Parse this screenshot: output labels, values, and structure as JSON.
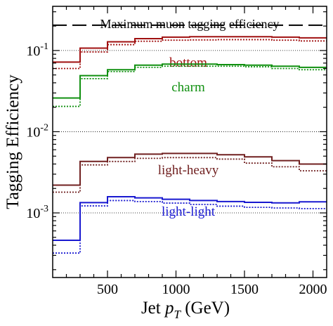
{
  "chart_data": {
    "type": "line",
    "xlabel": "Jet p_T (GeV)",
    "xlabel_parts": {
      "main": "Jet ",
      "var": "p",
      "sub": "T",
      "unit": " (GeV)"
    },
    "ylabel": "Tagging Efficiency",
    "xlim": [
      100,
      2100
    ],
    "ylim": [
      0.00016,
      0.35
    ],
    "yscale": "log",
    "x_ticks": [
      500,
      1000,
      1500,
      2000
    ],
    "x_tick_labels": [
      "500",
      "1000",
      "1500",
      "2000"
    ],
    "y_ticks": [
      0.001,
      0.01,
      0.1
    ],
    "y_tick_labels": [
      {
        "base": "10",
        "exp": "-3"
      },
      {
        "base": "10",
        "exp": "-2"
      },
      {
        "base": "10",
        "exp": "-1"
      }
    ],
    "grid_lines_y": [
      0.001,
      0.01,
      0.1
    ],
    "annotation": {
      "text": "Maximum muon tagging efficiency",
      "value": 0.205
    },
    "bin_edges": [
      100,
      300,
      500,
      700,
      900,
      1100,
      1300,
      1500,
      1700,
      1900,
      2100
    ],
    "series": [
      {
        "name": "bottom",
        "color": "#a01010",
        "solid": [
          0.072,
          0.107,
          0.128,
          0.14,
          0.146,
          0.148,
          0.148,
          0.148,
          0.146,
          0.143
        ],
        "dotted": [
          0.06,
          0.096,
          0.118,
          0.13,
          0.134,
          0.135,
          0.136,
          0.136,
          0.134,
          0.131
        ]
      },
      {
        "name": "charm",
        "color": "#109010",
        "solid": [
          0.026,
          0.049,
          0.058,
          0.066,
          0.068,
          0.068,
          0.067,
          0.066,
          0.064,
          0.062
        ],
        "dotted": [
          0.0205,
          0.045,
          0.055,
          0.062,
          0.064,
          0.064,
          0.064,
          0.063,
          0.06,
          0.058
        ]
      },
      {
        "name": "light-heavy",
        "color": "#702020",
        "solid": [
          0.0022,
          0.0043,
          0.0048,
          0.0053,
          0.0054,
          0.0054,
          0.0052,
          0.0049,
          0.0044,
          0.004
        ],
        "dotted": [
          0.0018,
          0.0039,
          0.0043,
          0.0047,
          0.0048,
          0.0048,
          0.0046,
          0.0041,
          0.0037,
          0.0033
        ]
      },
      {
        "name": "light-light",
        "color": "#1818d0",
        "solid": [
          0.00046,
          0.00134,
          0.00158,
          0.00153,
          0.00147,
          0.00142,
          0.00138,
          0.00135,
          0.00133,
          0.00137
        ],
        "dotted": [
          0.00032,
          0.00122,
          0.00142,
          0.00138,
          0.00132,
          0.00127,
          0.00121,
          0.00117,
          0.00115,
          0.00113
        ]
      }
    ]
  }
}
